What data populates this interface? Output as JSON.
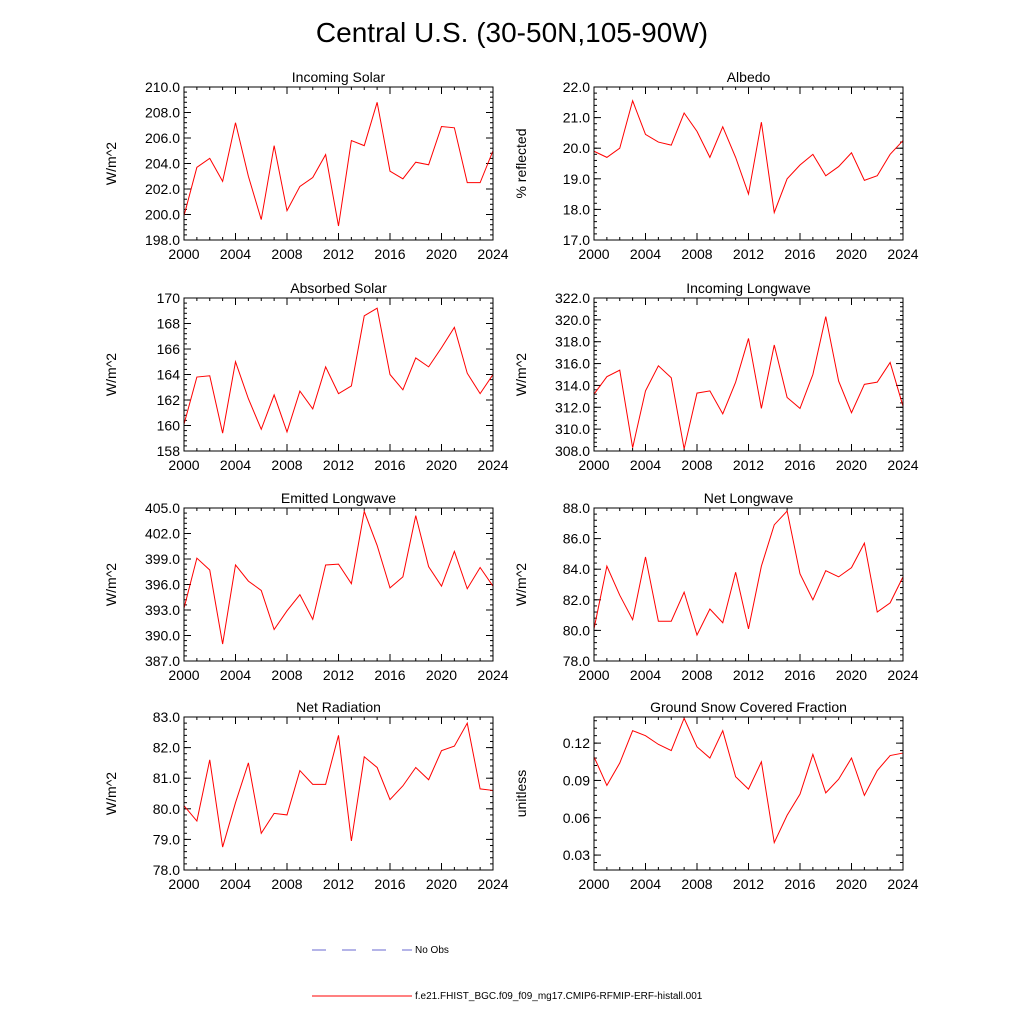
{
  "title": "Central U.S. (30-50N,105-90W)",
  "legend": {
    "obs_label": "No Obs",
    "obs_color": "#6a6ad0",
    "model_label": "f.e21.FHIST_BGC.f09_f09_mg17.CMIP6-RFMIP-ERF-histall.001",
    "model_color": "#ff0000"
  },
  "chart_data": [
    {
      "type": "line",
      "title": "Incoming Solar",
      "ylabel": "W/m^2",
      "xlim": [
        2000,
        2024
      ],
      "ylim": [
        198.0,
        210.0
      ],
      "xticks": [
        "2000",
        "2004",
        "2008",
        "2012",
        "2016",
        "2020",
        "2024"
      ],
      "yticks": [
        "198.0",
        "200.0",
        "202.0",
        "204.0",
        "206.0",
        "208.0",
        "210.0"
      ],
      "series": [
        {
          "name": "f.e21.FHIST_BGC.f09_f09_mg17.CMIP6-RFMIP-ERF-histall.001",
          "x": [
            2000,
            2001,
            2002,
            2003,
            2004,
            2005,
            2006,
            2007,
            2008,
            2009,
            2010,
            2011,
            2012,
            2013,
            2014,
            2015,
            2016,
            2017,
            2018,
            2019,
            2020,
            2021,
            2022,
            2023,
            2024
          ],
          "values": [
            199.9,
            203.7,
            204.4,
            202.6,
            207.2,
            203.0,
            199.6,
            205.4,
            200.3,
            202.2,
            202.9,
            204.7,
            199.1,
            205.8,
            205.4,
            208.8,
            203.4,
            202.8,
            204.1,
            203.9,
            206.9,
            206.8,
            202.5,
            202.5,
            205.0
          ]
        }
      ]
    },
    {
      "type": "line",
      "title": "Albedo",
      "ylabel": "% reflected",
      "xlim": [
        2000,
        2024
      ],
      "ylim": [
        17.0,
        22.0
      ],
      "xticks": [
        "2000",
        "2004",
        "2008",
        "2012",
        "2016",
        "2020",
        "2024"
      ],
      "yticks": [
        "17.0",
        "18.0",
        "19.0",
        "20.0",
        "21.0",
        "22.0"
      ],
      "series": [
        {
          "name": "f.e21.FHIST_BGC.f09_f09_mg17.CMIP6-RFMIP-ERF-histall.001",
          "x": [
            2000,
            2001,
            2002,
            2003,
            2004,
            2005,
            2006,
            2007,
            2008,
            2009,
            2010,
            2011,
            2012,
            2013,
            2014,
            2015,
            2016,
            2017,
            2018,
            2019,
            2020,
            2021,
            2022,
            2023,
            2024
          ],
          "values": [
            19.9,
            19.7,
            20.0,
            21.55,
            20.45,
            20.2,
            20.1,
            21.15,
            20.55,
            19.7,
            20.7,
            19.7,
            18.5,
            20.85,
            17.9,
            19.0,
            19.45,
            19.8,
            19.1,
            19.4,
            19.85,
            18.95,
            19.1,
            19.8,
            20.25
          ]
        }
      ]
    },
    {
      "type": "line",
      "title": "Absorbed Solar",
      "ylabel": "W/m^2",
      "xlim": [
        2000,
        2024
      ],
      "ylim": [
        158,
        170
      ],
      "xticks": [
        "2000",
        "2004",
        "2008",
        "2012",
        "2016",
        "2020",
        "2024"
      ],
      "yticks": [
        "158",
        "160",
        "162",
        "164",
        "166",
        "168",
        "170"
      ],
      "series": [
        {
          "name": "f.e21.FHIST_BGC.f09_f09_mg17.CMIP6-RFMIP-ERF-histall.001",
          "x": [
            2000,
            2001,
            2002,
            2003,
            2004,
            2005,
            2006,
            2007,
            2008,
            2009,
            2010,
            2011,
            2012,
            2013,
            2014,
            2015,
            2016,
            2017,
            2018,
            2019,
            2020,
            2021,
            2022,
            2023,
            2024
          ],
          "values": [
            160.1,
            163.8,
            163.9,
            159.4,
            165.0,
            162.1,
            159.7,
            162.4,
            159.5,
            162.7,
            161.3,
            164.6,
            162.5,
            163.1,
            168.6,
            169.2,
            164.0,
            162.8,
            165.3,
            164.6,
            166.1,
            167.7,
            164.1,
            162.5,
            164.0
          ]
        }
      ]
    },
    {
      "type": "line",
      "title": "Incoming Longwave",
      "ylabel": "W/m^2",
      "xlim": [
        2000,
        2024
      ],
      "ylim": [
        308.0,
        322.0
      ],
      "xticks": [
        "2000",
        "2004",
        "2008",
        "2012",
        "2016",
        "2020",
        "2024"
      ],
      "yticks": [
        "308.0",
        "310.0",
        "312.0",
        "314.0",
        "316.0",
        "318.0",
        "320.0",
        "322.0"
      ],
      "series": [
        {
          "name": "f.e21.FHIST_BGC.f09_f09_mg17.CMIP6-RFMIP-ERF-histall.001",
          "x": [
            2000,
            2001,
            2002,
            2003,
            2004,
            2005,
            2006,
            2007,
            2008,
            2009,
            2010,
            2011,
            2012,
            2013,
            2014,
            2015,
            2016,
            2017,
            2018,
            2019,
            2020,
            2021,
            2022,
            2023,
            2024
          ],
          "values": [
            313.2,
            314.8,
            315.4,
            308.3,
            313.5,
            315.8,
            314.7,
            308.2,
            313.3,
            313.5,
            311.4,
            314.3,
            318.3,
            311.9,
            317.7,
            312.9,
            311.9,
            315.0,
            320.3,
            314.4,
            311.5,
            314.1,
            314.3,
            316.1,
            312.1
          ]
        }
      ]
    },
    {
      "type": "line",
      "title": "Emitted Longwave",
      "ylabel": "W/m^2",
      "xlim": [
        2000,
        2024
      ],
      "ylim": [
        387.0,
        405.0
      ],
      "xticks": [
        "2000",
        "2004",
        "2008",
        "2012",
        "2016",
        "2020",
        "2024"
      ],
      "yticks": [
        "387.0",
        "390.0",
        "393.0",
        "396.0",
        "399.0",
        "402.0",
        "405.0"
      ],
      "series": [
        {
          "name": "f.e21.FHIST_BGC.f09_f09_mg17.CMIP6-RFMIP-ERF-histall.001",
          "x": [
            2000,
            2001,
            2002,
            2003,
            2004,
            2005,
            2006,
            2007,
            2008,
            2009,
            2010,
            2011,
            2012,
            2013,
            2014,
            2015,
            2016,
            2017,
            2018,
            2019,
            2020,
            2021,
            2022,
            2023,
            2024
          ],
          "values": [
            393.2,
            399.1,
            397.7,
            389.0,
            398.3,
            396.4,
            395.3,
            390.7,
            392.9,
            394.8,
            391.9,
            398.3,
            398.4,
            396.1,
            404.6,
            400.6,
            395.6,
            396.9,
            404.1,
            398.1,
            395.8,
            399.9,
            395.5,
            398.0,
            395.8
          ]
        }
      ]
    },
    {
      "type": "line",
      "title": "Net Longwave",
      "ylabel": "W/m^2",
      "xlim": [
        2000,
        2024
      ],
      "ylim": [
        78.0,
        88.0
      ],
      "xticks": [
        "2000",
        "2004",
        "2008",
        "2012",
        "2016",
        "2020",
        "2024"
      ],
      "yticks": [
        "78.0",
        "80.0",
        "82.0",
        "84.0",
        "86.0",
        "88.0"
      ],
      "series": [
        {
          "name": "f.e21.FHIST_BGC.f09_f09_mg17.CMIP6-RFMIP-ERF-histall.001",
          "x": [
            2000,
            2001,
            2002,
            2003,
            2004,
            2005,
            2006,
            2007,
            2008,
            2009,
            2010,
            2011,
            2012,
            2013,
            2014,
            2015,
            2016,
            2017,
            2018,
            2019,
            2020,
            2021,
            2022,
            2023,
            2024
          ],
          "values": [
            80.1,
            84.2,
            82.3,
            80.7,
            84.8,
            80.6,
            80.6,
            82.5,
            79.7,
            81.4,
            80.5,
            83.8,
            80.1,
            84.2,
            86.9,
            87.8,
            83.7,
            82.0,
            83.9,
            83.5,
            84.1,
            85.7,
            81.2,
            81.8,
            83.5
          ]
        }
      ]
    },
    {
      "type": "line",
      "title": "Net Radiation",
      "ylabel": "W/m^2",
      "xlim": [
        2000,
        2024
      ],
      "ylim": [
        78.0,
        83.0
      ],
      "xticks": [
        "2000",
        "2004",
        "2008",
        "2012",
        "2016",
        "2020",
        "2024"
      ],
      "yticks": [
        "78.0",
        "79.0",
        "80.0",
        "81.0",
        "82.0",
        "83.0"
      ],
      "series": [
        {
          "name": "f.e21.FHIST_BGC.f09_f09_mg17.CMIP6-RFMIP-ERF-histall.001",
          "x": [
            2000,
            2001,
            2002,
            2003,
            2004,
            2005,
            2006,
            2007,
            2008,
            2009,
            2010,
            2011,
            2012,
            2013,
            2014,
            2015,
            2016,
            2017,
            2018,
            2019,
            2020,
            2021,
            2022,
            2023,
            2024
          ],
          "values": [
            80.1,
            79.6,
            81.6,
            78.75,
            80.2,
            81.5,
            79.2,
            79.85,
            79.8,
            81.25,
            80.8,
            80.8,
            82.4,
            78.95,
            81.7,
            81.35,
            80.3,
            80.75,
            81.35,
            80.95,
            81.9,
            82.05,
            82.8,
            80.65,
            80.6
          ]
        }
      ]
    },
    {
      "type": "line",
      "title": "Ground Snow Covered Fraction",
      "ylabel": "unitless",
      "xlim": [
        2000,
        2024
      ],
      "ylim": [
        0.018,
        0.141
      ],
      "xticks": [
        "2000",
        "2004",
        "2008",
        "2012",
        "2016",
        "2020",
        "2024"
      ],
      "yticks": [
        "0.03",
        "0.06",
        "0.09",
        "0.12"
      ],
      "ytick_values": [
        0.03,
        0.06,
        0.09,
        0.12
      ],
      "series": [
        {
          "name": "f.e21.FHIST_BGC.f09_f09_mg17.CMIP6-RFMIP-ERF-histall.001",
          "x": [
            2000,
            2001,
            2002,
            2003,
            2004,
            2005,
            2006,
            2007,
            2008,
            2009,
            2010,
            2011,
            2012,
            2013,
            2014,
            2015,
            2016,
            2017,
            2018,
            2019,
            2020,
            2021,
            2022,
            2023,
            2024
          ],
          "values": [
            0.109,
            0.086,
            0.104,
            0.13,
            0.126,
            0.119,
            0.114,
            0.14,
            0.117,
            0.108,
            0.13,
            0.093,
            0.083,
            0.105,
            0.04,
            0.062,
            0.079,
            0.111,
            0.08,
            0.091,
            0.108,
            0.078,
            0.098,
            0.11,
            0.112
          ]
        }
      ]
    }
  ]
}
